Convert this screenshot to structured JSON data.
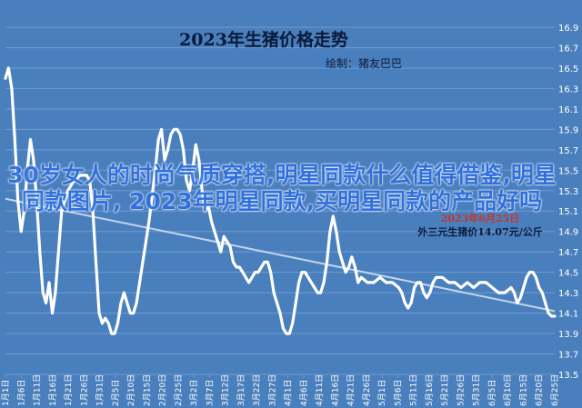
{
  "chart_data": {
    "type": "line",
    "title": "2023年生猪价格走势",
    "subtitle": "绘制：猪友巴巴",
    "annotation": {
      "line1": "2023年6月25日",
      "line2": "外三元生猪价14.07元/公斤"
    },
    "colors": {
      "background": "#4a7fbd",
      "line": "#ffffff",
      "trend": "#d6e4f3",
      "grid": "#6f9bd0",
      "text": "#ffffff",
      "title": "#0a1a3a"
    },
    "ylim": [
      13.5,
      16.9
    ],
    "y_ticks": [
      "16.9",
      "16.7",
      "16.5",
      "16.3",
      "16.1",
      "15.9",
      "15.7",
      "15.5",
      "15.3",
      "15.1",
      "14.9",
      "14.7",
      "14.5",
      "14.3",
      "14.1",
      "13.9",
      "13.7",
      "13.5"
    ],
    "x_ticks": [
      "1月1日",
      "1月6日",
      "1月11日",
      "1月16日",
      "1月21日",
      "1月26日",
      "1月31日",
      "2月5日",
      "2月10日",
      "2月15日",
      "2月20日",
      "2月25日",
      "3月2日",
      "3月7日",
      "3月12日",
      "3月17日",
      "3月22日",
      "3月27日",
      "4月1日",
      "4月6日",
      "4月11日",
      "4月16日",
      "4月21日",
      "4月26日",
      "5月1日",
      "5月6日",
      "5月11日",
      "5月16日",
      "5月21日",
      "5月26日",
      "5月31日",
      "6月5日",
      "6月10日",
      "6月15日",
      "6月20日",
      "6月25日"
    ],
    "x_range": [
      0,
      176
    ],
    "series": [
      {
        "points": [
          [
            0,
            16.4
          ],
          [
            1,
            16.5
          ],
          [
            2,
            16.3
          ],
          [
            3,
            15.8
          ],
          [
            4,
            15.2
          ],
          [
            5,
            14.9
          ],
          [
            6,
            15.1
          ],
          [
            7,
            15.5
          ],
          [
            8,
            15.8
          ],
          [
            9,
            15.6
          ],
          [
            10,
            15.2
          ],
          [
            11,
            14.7
          ],
          [
            12,
            14.3
          ],
          [
            13,
            14.2
          ],
          [
            14,
            14.4
          ],
          [
            15,
            14.1
          ],
          [
            16,
            14.3
          ],
          [
            17,
            14.7
          ],
          [
            18,
            15.1
          ],
          [
            20,
            15.3
          ],
          [
            22,
            15.4
          ],
          [
            24,
            15.45
          ],
          [
            26,
            15.45
          ],
          [
            27,
            15.4
          ],
          [
            28,
            15.1
          ],
          [
            29,
            14.6
          ],
          [
            30,
            14.1
          ],
          [
            31,
            14.0
          ],
          [
            32,
            14.05
          ],
          [
            33,
            14.0
          ],
          [
            34,
            13.9
          ],
          [
            35,
            13.9
          ],
          [
            36,
            14.0
          ],
          [
            37,
            14.2
          ],
          [
            38,
            14.3
          ],
          [
            39,
            14.2
          ],
          [
            40,
            14.1
          ],
          [
            41,
            14.1
          ],
          [
            42,
            14.2
          ],
          [
            44,
            14.6
          ],
          [
            46,
            15.0
          ],
          [
            48,
            15.5
          ],
          [
            49,
            15.8
          ],
          [
            50,
            15.9
          ],
          [
            51,
            15.6
          ],
          [
            52,
            15.7
          ],
          [
            53,
            15.85
          ],
          [
            54,
            15.9
          ],
          [
            55,
            15.9
          ],
          [
            56,
            15.85
          ],
          [
            57,
            15.7
          ],
          [
            58,
            15.4
          ],
          [
            59,
            15.3
          ],
          [
            60,
            15.5
          ],
          [
            61,
            15.75
          ],
          [
            62,
            15.6
          ],
          [
            63,
            15.3
          ],
          [
            64,
            15.1
          ],
          [
            65,
            15.15
          ],
          [
            66,
            15.0
          ],
          [
            67,
            14.9
          ],
          [
            68,
            14.8
          ],
          [
            69,
            14.7
          ],
          [
            70,
            14.85
          ],
          [
            71,
            14.8
          ],
          [
            72,
            14.75
          ],
          [
            73,
            14.6
          ],
          [
            74,
            14.55
          ],
          [
            75,
            14.55
          ],
          [
            76,
            14.5
          ],
          [
            77,
            14.45
          ],
          [
            78,
            14.4
          ],
          [
            79,
            14.45
          ],
          [
            80,
            14.5
          ],
          [
            81,
            14.5
          ],
          [
            82,
            14.55
          ],
          [
            83,
            14.6
          ],
          [
            84,
            14.6
          ],
          [
            85,
            14.5
          ],
          [
            86,
            14.3
          ],
          [
            87,
            14.2
          ],
          [
            88,
            14.1
          ],
          [
            89,
            13.95
          ],
          [
            90,
            13.9
          ],
          [
            91,
            13.9
          ],
          [
            92,
            14.0
          ],
          [
            93,
            14.2
          ],
          [
            94,
            14.4
          ],
          [
            95,
            14.5
          ],
          [
            96,
            14.5
          ],
          [
            97,
            14.45
          ],
          [
            98,
            14.4
          ],
          [
            99,
            14.35
          ],
          [
            100,
            14.3
          ],
          [
            101,
            14.3
          ],
          [
            102,
            14.4
          ],
          [
            103,
            14.6
          ],
          [
            104,
            14.9
          ],
          [
            105,
            15.05
          ],
          [
            106,
            14.9
          ],
          [
            107,
            14.7
          ],
          [
            108,
            14.6
          ],
          [
            109,
            14.5
          ],
          [
            110,
            14.55
          ],
          [
            111,
            14.65
          ],
          [
            112,
            14.55
          ],
          [
            113,
            14.4
          ],
          [
            114,
            14.45
          ],
          [
            116,
            14.4
          ],
          [
            118,
            14.4
          ],
          [
            120,
            14.45
          ],
          [
            122,
            14.4
          ],
          [
            124,
            14.4
          ],
          [
            126,
            14.35
          ],
          [
            127,
            14.3
          ],
          [
            128,
            14.2
          ],
          [
            129,
            14.15
          ],
          [
            130,
            14.2
          ],
          [
            131,
            14.35
          ],
          [
            132,
            14.4
          ],
          [
            133,
            14.4
          ],
          [
            134,
            14.3
          ],
          [
            135,
            14.25
          ],
          [
            136,
            14.3
          ],
          [
            137,
            14.4
          ],
          [
            138,
            14.45
          ],
          [
            140,
            14.45
          ],
          [
            142,
            14.4
          ],
          [
            144,
            14.4
          ],
          [
            146,
            14.35
          ],
          [
            148,
            14.4
          ],
          [
            150,
            14.35
          ],
          [
            152,
            14.4
          ],
          [
            154,
            14.4
          ],
          [
            156,
            14.35
          ],
          [
            158,
            14.3
          ],
          [
            160,
            14.3
          ],
          [
            162,
            14.35
          ],
          [
            163,
            14.3
          ],
          [
            164,
            14.2
          ],
          [
            165,
            14.25
          ],
          [
            166,
            14.35
          ],
          [
            167,
            14.45
          ],
          [
            168,
            14.5
          ],
          [
            169,
            14.5
          ],
          [
            170,
            14.45
          ],
          [
            171,
            14.35
          ],
          [
            172,
            14.3
          ],
          [
            173,
            14.2
          ],
          [
            174,
            14.1
          ],
          [
            175,
            14.07
          ],
          [
            176,
            14.07
          ]
        ]
      }
    ],
    "trendline": {
      "start": [
        0,
        15.22
      ],
      "end": [
        176,
        14.12
      ]
    }
  },
  "overlay_text": "30岁女人的时尚气质穿搭,明星同款什么值得借鉴,明星同款图片, 2023年明星同款,买明星同款的产品好吗"
}
